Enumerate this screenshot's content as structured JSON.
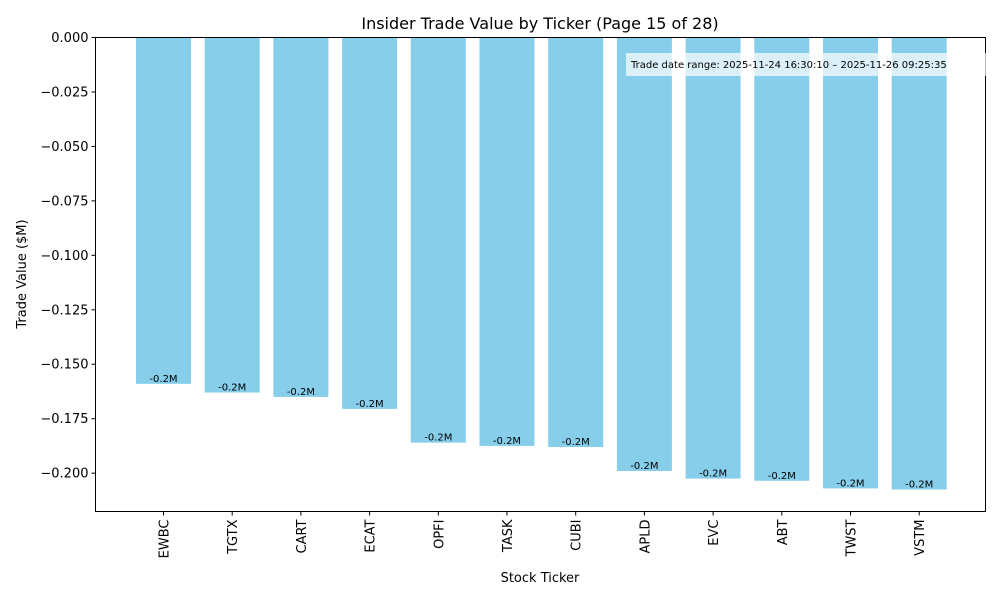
{
  "chart_data": {
    "type": "bar",
    "title": "Insider Trade Value by Ticker (Page 15 of 28)",
    "xlabel": "Stock Ticker",
    "ylabel": "Trade Value ($M)",
    "categories": [
      "EWBC",
      "TGTX",
      "CART",
      "ECAT",
      "OPFI",
      "TASK",
      "CUBI",
      "APLD",
      "EVC",
      "ABT",
      "TWST",
      "VSTM"
    ],
    "values": [
      -0.159,
      -0.163,
      -0.165,
      -0.1705,
      -0.186,
      -0.1875,
      -0.188,
      -0.199,
      -0.2025,
      -0.2035,
      -0.207,
      -0.2075
    ],
    "data_labels": [
      "-0.2M",
      "-0.2M",
      "-0.2M",
      "-0.2M",
      "-0.2M",
      "-0.2M",
      "-0.2M",
      "-0.2M",
      "-0.2M",
      "-0.2M",
      "-0.2M",
      "-0.2M"
    ],
    "ylim": [
      -0.2176,
      0.0
    ],
    "yticks": [
      0.0,
      -0.025,
      -0.05,
      -0.075,
      -0.1,
      -0.125,
      -0.15,
      -0.175,
      -0.2
    ],
    "ytick_labels": [
      "0.000",
      "−0.025",
      "−0.050",
      "−0.075",
      "−0.100",
      "−0.125",
      "−0.150",
      "−0.175",
      "−0.200"
    ],
    "annotation": "Trade date range: 2025-11-24 16:30:10 – 2025-11-26 09:25:35",
    "bar_color": "#87ceeb",
    "grid": false,
    "legend": "none"
  }
}
